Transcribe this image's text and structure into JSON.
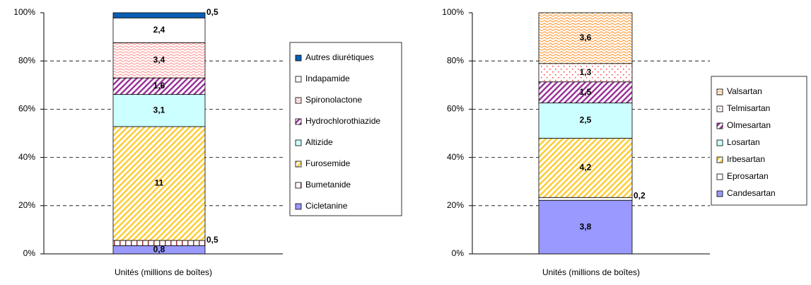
{
  "chart_data": [
    {
      "type": "bar",
      "stacking": "percent",
      "x_label": "Unités (millions de boîtes)",
      "ylim": [
        0,
        100
      ],
      "yticks": [
        {
          "value": 0,
          "label": "0%"
        },
        {
          "value": 20,
          "label": "20%"
        },
        {
          "value": 40,
          "label": "40%"
        },
        {
          "value": 60,
          "label": "60%"
        },
        {
          "value": 80,
          "label": "80%"
        },
        {
          "value": 100,
          "label": "100%"
        }
      ],
      "grid": true,
      "legend": "right",
      "series": [
        {
          "name": "Cicletanine",
          "color": "#9999ff",
          "values": [
            0.8
          ],
          "value_labels": [
            "0,8"
          ]
        },
        {
          "name": "Bumetanide",
          "color": "#993333",
          "pattern": "dash",
          "values": [
            0.5
          ],
          "value_labels": [
            "0,5"
          ]
        },
        {
          "name": "Furosemide",
          "color": "#ffcc33",
          "pattern": "diagonal",
          "values": [
            11
          ],
          "value_labels": [
            "11"
          ]
        },
        {
          "name": "Altizide",
          "color": "#ccffff",
          "values": [
            3.1
          ],
          "value_labels": [
            "3,1"
          ]
        },
        {
          "name": "Hydrochlorothiazide",
          "color": "#993399",
          "pattern": "diagonal",
          "values": [
            1.6
          ],
          "value_labels": [
            "1,6"
          ]
        },
        {
          "name": "Spironolactone",
          "color": "#ff9999",
          "pattern": "wave",
          "values": [
            3.4
          ],
          "value_labels": [
            "3,4"
          ]
        },
        {
          "name": "Indapamide",
          "color": "#ffffff",
          "values": [
            2.4
          ],
          "value_labels": [
            "2,4"
          ]
        },
        {
          "name": "Autres diurétiques",
          "color": "#0a5fb4",
          "values": [
            0.5
          ],
          "value_labels": [
            "0,5"
          ]
        }
      ]
    },
    {
      "type": "bar",
      "stacking": "percent",
      "x_label": "Unités (millions de boîtes)",
      "ylim": [
        0,
        100
      ],
      "yticks": [
        {
          "value": 0,
          "label": "0%"
        },
        {
          "value": 20,
          "label": "20%"
        },
        {
          "value": 40,
          "label": "40%"
        },
        {
          "value": 60,
          "label": "60%"
        },
        {
          "value": 80,
          "label": "80%"
        },
        {
          "value": 100,
          "label": "100%"
        }
      ],
      "grid": true,
      "legend": "right",
      "series": [
        {
          "name": "Candesartan",
          "color": "#9999ff",
          "values": [
            3.8
          ],
          "value_labels": [
            "3,8"
          ]
        },
        {
          "name": "Eprosartan",
          "color": "#ffffff",
          "values": [
            0.2
          ],
          "value_labels": [
            "0,2"
          ]
        },
        {
          "name": "Irbesartan",
          "color": "#ffcc33",
          "pattern": "diagonal",
          "values": [
            4.2
          ],
          "value_labels": [
            "4,2"
          ]
        },
        {
          "name": "Losartan",
          "color": "#ccffff",
          "values": [
            2.5
          ],
          "value_labels": [
            "2,5"
          ]
        },
        {
          "name": "Olmesartan",
          "color": "#993399",
          "pattern": "diagonal",
          "values": [
            1.5
          ],
          "value_labels": [
            "1,5"
          ]
        },
        {
          "name": "Telmisartan",
          "color": "#ff3333",
          "pattern": "dots",
          "values": [
            1.3
          ],
          "value_labels": [
            "1,3"
          ]
        },
        {
          "name": "Valsartan",
          "color": "#ff9933",
          "pattern": "wave",
          "values": [
            3.6
          ],
          "value_labels": [
            "3,6"
          ]
        }
      ]
    }
  ]
}
